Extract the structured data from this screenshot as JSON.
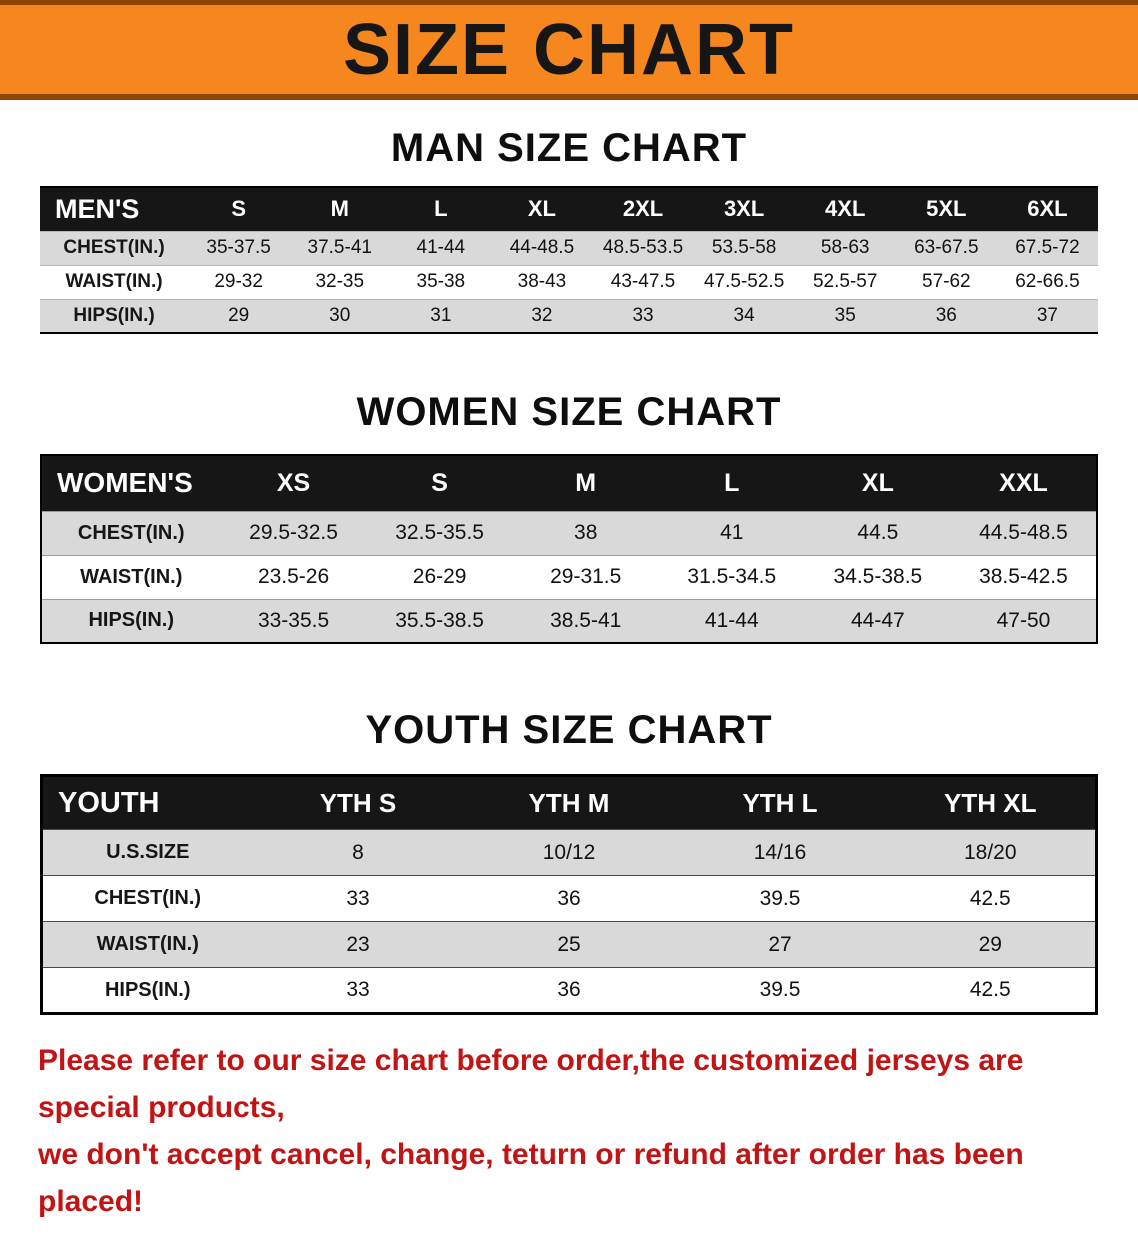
{
  "banner": {
    "title": "SIZE CHART",
    "bg_color": "#f6871e",
    "border_color": "#8f4503",
    "text_color": "#161616"
  },
  "sections": [
    {
      "heading": "MAN SIZE CHART",
      "table": {
        "header": [
          "MEN'S",
          "S",
          "M",
          "L",
          "XL",
          "2XL",
          "3XL",
          "4XL",
          "5XL",
          "6XL"
        ],
        "rows": [
          [
            "CHEST(IN.)",
            "35-37.5",
            "37.5-41",
            "41-44",
            "44-48.5",
            "48.5-53.5",
            "53.5-58",
            "58-63",
            "63-67.5",
            "67.5-72"
          ],
          [
            "WAIST(IN.)",
            "29-32",
            "32-35",
            "35-38",
            "38-43",
            "43-47.5",
            "47.5-52.5",
            "52.5-57",
            "57-62",
            "62-66.5"
          ],
          [
            "HIPS(IN.)",
            "29",
            "30",
            "31",
            "32",
            "33",
            "34",
            "35",
            "36",
            "37"
          ]
        ]
      }
    },
    {
      "heading": "WOMEN SIZE CHART",
      "table": {
        "header": [
          "WOMEN'S",
          "XS",
          "S",
          "M",
          "L",
          "XL",
          "XXL"
        ],
        "rows": [
          [
            "CHEST(IN.)",
            "29.5-32.5",
            "32.5-35.5",
            "38",
            "41",
            "44.5",
            "44.5-48.5"
          ],
          [
            "WAIST(IN.)",
            "23.5-26",
            "26-29",
            "29-31.5",
            "31.5-34.5",
            "34.5-38.5",
            "38.5-42.5"
          ],
          [
            "HIPS(IN.)",
            "33-35.5",
            "35.5-38.5",
            "38.5-41",
            "41-44",
            "44-47",
            "47-50"
          ]
        ]
      }
    },
    {
      "heading": "YOUTH SIZE CHART",
      "table": {
        "header": [
          "YOUTH",
          "YTH S",
          "YTH M",
          "YTH L",
          "YTH XL"
        ],
        "rows": [
          [
            "U.S.SIZE",
            "8",
            "10/12",
            "14/16",
            "18/20"
          ],
          [
            "CHEST(IN.)",
            "33",
            "36",
            "39.5",
            "42.5"
          ],
          [
            "WAIST(IN.)",
            "23",
            "25",
            "27",
            "29"
          ],
          [
            "HIPS(IN.)",
            "33",
            "36",
            "39.5",
            "42.5"
          ]
        ]
      }
    }
  ],
  "disclaimer": {
    "color": "#c11414",
    "lines": [
      "Please refer to our size chart before order,the customized jerseys are special products,",
      "we don't accept cancel, change, teturn or refund after order has been placed!"
    ]
  }
}
